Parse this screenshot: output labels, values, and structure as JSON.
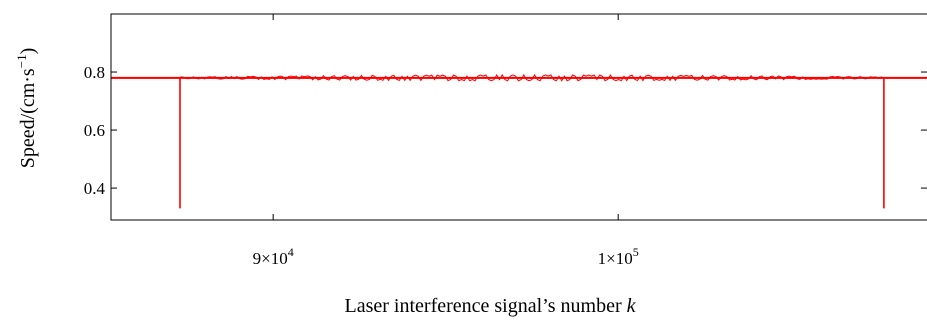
{
  "chart_data": {
    "type": "line",
    "title": "",
    "xlabel": "Laser interference signal’s number",
    "xlabel_var": "k",
    "ylabel": "Speed/(cm·s",
    "ylabel_exp": "−1",
    "ylabel_close": ")",
    "xlim": [
      85300,
      108950
    ],
    "ylim": [
      0.29,
      1.0
    ],
    "grid": false,
    "legend": "none",
    "line_color": "#ff0000",
    "yticks": [
      {
        "value": 0.4,
        "label": "0.4"
      },
      {
        "value": 0.6,
        "label": "0.6"
      },
      {
        "value": 0.8,
        "label": "0.8"
      }
    ],
    "xticks": [
      {
        "value": 90000,
        "mantissa": "9×10",
        "exponent": "4"
      },
      {
        "value": 100000,
        "mantissa": "1×10",
        "exponent": "5"
      }
    ],
    "series": [
      {
        "baseline": 0.78,
        "noise_band": [
          0.77,
          0.79
        ],
        "x": [
          85300,
          87300,
          87300,
          87300,
          107700,
          107700,
          107700,
          108950
        ],
        "y": [
          0.78,
          0.78,
          0.33,
          0.78,
          0.78,
          0.33,
          0.78,
          0.78
        ]
      }
    ]
  }
}
